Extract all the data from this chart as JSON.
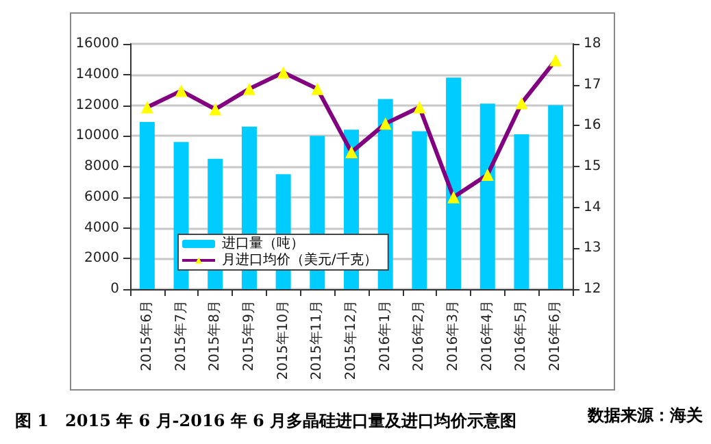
{
  "chart_data": {
    "type": "bar",
    "title": "图 1　2015 年 6 月-2016 年 6 月多晶硅进口量及进口均价示意图",
    "annotations": [
      "数据来源：海关"
    ],
    "categories": [
      "2015年6月",
      "2015年7月",
      "2015年8月",
      "2015年9月",
      "2015年10月",
      "2015年11月",
      "2015年12月",
      "2016年1月",
      "2016年2月",
      "2016年3月",
      "2016年4月",
      "2016年5月",
      "2016年6月"
    ],
    "series": [
      {
        "name": "进口量（吨）",
        "color": "#00ccff",
        "values": [
          10900,
          9600,
          8500,
          10600,
          7500,
          10000,
          10400,
          12400,
          10300,
          13800,
          12100,
          10100,
          12000
        ]
      },
      {
        "name": "月进口均价（美元/千克）",
        "type": "line",
        "axis": "y2",
        "color": "#800080",
        "marker": "triangle",
        "values": [
          16.45,
          16.85,
          16.4,
          16.9,
          17.3,
          16.9,
          15.35,
          16.05,
          16.45,
          14.25,
          14.8,
          16.55,
          17.6
        ]
      }
    ],
    "ylim": [
      0,
      16000
    ],
    "yticks": [
      0,
      2000,
      4000,
      6000,
      8000,
      10000,
      12000,
      14000,
      16000
    ],
    "y2lim": [
      12,
      18
    ],
    "y2ticks": [
      12,
      13,
      14,
      15,
      16,
      17,
      18
    ],
    "grid": "y",
    "legend": "bottom left"
  }
}
